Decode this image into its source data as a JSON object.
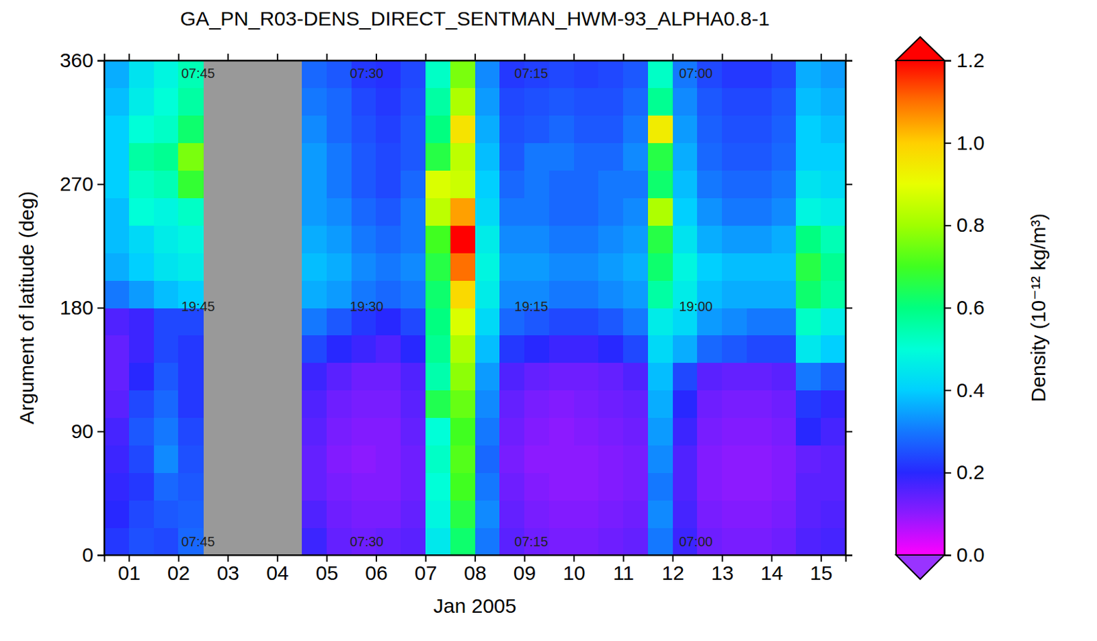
{
  "chart_data": {
    "type": "heatmap",
    "title": "GA_PN_R03-DENS_DIRECT_SENTMAN_HWM-93_ALPHA0.8-1",
    "x_label": "Jan 2005",
    "y_label": "Argument of latitude (deg)",
    "xlim": [
      1,
      16
    ],
    "xticks": [
      {
        "value": 1.5,
        "label": "01"
      },
      {
        "value": 2.5,
        "label": "02"
      },
      {
        "value": 3.5,
        "label": "03"
      },
      {
        "value": 4.5,
        "label": "04"
      },
      {
        "value": 5.5,
        "label": "05"
      },
      {
        "value": 6.5,
        "label": "06"
      },
      {
        "value": 7.5,
        "label": "07"
      },
      {
        "value": 8.5,
        "label": "08"
      },
      {
        "value": 9.5,
        "label": "09"
      },
      {
        "value": 10.5,
        "label": "10"
      },
      {
        "value": 11.5,
        "label": "11"
      },
      {
        "value": 12.5,
        "label": "12"
      },
      {
        "value": 13.5,
        "label": "13"
      },
      {
        "value": 14.5,
        "label": "14"
      },
      {
        "value": 15.5,
        "label": "15"
      }
    ],
    "ylim": [
      0,
      360
    ],
    "yticks": [
      0,
      90,
      180,
      270,
      360
    ],
    "x": [
      1,
      1.5,
      2,
      2.5,
      3,
      3.5,
      4,
      4.5,
      5,
      5.5,
      6,
      6.5,
      7,
      7.5,
      8,
      8.5,
      9,
      9.5,
      10,
      10.5,
      11,
      11.5,
      12,
      12.5,
      13,
      13.5,
      14,
      14.5,
      15,
      15.5
    ],
    "y": [
      0,
      20,
      40,
      60,
      80,
      100,
      120,
      140,
      160,
      180,
      200,
      220,
      240,
      260,
      280,
      300,
      320,
      340
    ],
    "values": [
      [
        0.22,
        0.25,
        0.24,
        0.28,
        null,
        null,
        null,
        null,
        0.18,
        0.14,
        0.13,
        0.14,
        0.15,
        0.45,
        0.62,
        0.3,
        0.15,
        0.13,
        0.12,
        0.12,
        0.13,
        0.14,
        0.3,
        0.18,
        0.13,
        0.12,
        0.12,
        0.13,
        0.16,
        0.17
      ],
      [
        0.2,
        0.24,
        0.26,
        0.27,
        null,
        null,
        null,
        null,
        0.16,
        0.13,
        0.12,
        0.12,
        0.14,
        0.48,
        0.66,
        0.32,
        0.14,
        0.12,
        0.11,
        0.11,
        0.12,
        0.13,
        0.32,
        0.17,
        0.12,
        0.11,
        0.11,
        0.12,
        0.15,
        0.16
      ],
      [
        0.19,
        0.22,
        0.28,
        0.26,
        null,
        null,
        null,
        null,
        0.14,
        0.12,
        0.11,
        0.11,
        0.13,
        0.5,
        0.7,
        0.3,
        0.13,
        0.11,
        0.1,
        0.1,
        0.11,
        0.12,
        0.3,
        0.16,
        0.11,
        0.1,
        0.1,
        0.11,
        0.15,
        0.15
      ],
      [
        0.18,
        0.24,
        0.32,
        0.25,
        null,
        null,
        null,
        null,
        0.14,
        0.11,
        0.1,
        0.11,
        0.13,
        0.52,
        0.72,
        0.28,
        0.12,
        0.1,
        0.1,
        0.1,
        0.11,
        0.12,
        0.32,
        0.16,
        0.11,
        0.1,
        0.1,
        0.11,
        0.14,
        0.15
      ],
      [
        0.17,
        0.26,
        0.3,
        0.24,
        null,
        null,
        null,
        null,
        0.15,
        0.12,
        0.11,
        0.11,
        0.14,
        0.5,
        0.7,
        0.3,
        0.13,
        0.11,
        0.1,
        0.11,
        0.12,
        0.13,
        0.34,
        0.18,
        0.12,
        0.11,
        0.11,
        0.12,
        0.2,
        0.17
      ],
      [
        0.15,
        0.24,
        0.28,
        0.22,
        null,
        null,
        null,
        null,
        0.16,
        0.13,
        0.12,
        0.12,
        0.15,
        0.65,
        0.74,
        0.32,
        0.14,
        0.12,
        0.11,
        0.12,
        0.13,
        0.14,
        0.36,
        0.2,
        0.13,
        0.12,
        0.12,
        0.13,
        0.22,
        0.19
      ],
      [
        0.14,
        0.2,
        0.26,
        0.22,
        null,
        null,
        null,
        null,
        0.18,
        0.15,
        0.13,
        0.13,
        0.16,
        0.55,
        0.78,
        0.34,
        0.16,
        0.14,
        0.13,
        0.13,
        0.14,
        0.16,
        0.38,
        0.24,
        0.15,
        0.14,
        0.14,
        0.15,
        0.3,
        0.26
      ],
      [
        0.14,
        0.18,
        0.24,
        0.22,
        null,
        null,
        null,
        null,
        0.24,
        0.2,
        0.18,
        0.16,
        0.2,
        0.58,
        0.82,
        0.38,
        0.22,
        0.2,
        0.18,
        0.18,
        0.2,
        0.24,
        0.42,
        0.36,
        0.28,
        0.26,
        0.24,
        0.24,
        0.45,
        0.4
      ],
      [
        0.16,
        0.18,
        0.24,
        0.24,
        null,
        null,
        null,
        null,
        0.3,
        0.26,
        0.22,
        0.2,
        0.24,
        0.6,
        0.88,
        0.42,
        0.28,
        0.26,
        0.24,
        0.24,
        0.26,
        0.3,
        0.46,
        0.42,
        0.34,
        0.32,
        0.3,
        0.3,
        0.52,
        0.46
      ],
      [
        0.3,
        0.34,
        0.38,
        0.4,
        null,
        null,
        null,
        null,
        0.36,
        0.34,
        0.3,
        0.28,
        0.3,
        0.62,
        0.98,
        0.46,
        0.32,
        0.32,
        0.3,
        0.3,
        0.32,
        0.34,
        0.56,
        0.46,
        0.38,
        0.36,
        0.36,
        0.36,
        0.62,
        0.56
      ],
      [
        0.36,
        0.4,
        0.44,
        0.46,
        null,
        null,
        null,
        null,
        0.38,
        0.36,
        0.32,
        0.3,
        0.32,
        0.66,
        1.1,
        0.48,
        0.34,
        0.34,
        0.32,
        0.32,
        0.34,
        0.36,
        0.62,
        0.48,
        0.4,
        0.38,
        0.38,
        0.38,
        0.66,
        0.58
      ],
      [
        0.38,
        0.42,
        0.46,
        0.48,
        null,
        null,
        null,
        null,
        0.36,
        0.34,
        0.3,
        0.28,
        0.3,
        0.7,
        1.2,
        0.46,
        0.32,
        0.32,
        0.3,
        0.3,
        0.32,
        0.34,
        0.66,
        0.44,
        0.36,
        0.34,
        0.34,
        0.36,
        0.6,
        0.54
      ],
      [
        0.38,
        0.5,
        0.48,
        0.52,
        null,
        null,
        null,
        null,
        0.34,
        0.32,
        0.28,
        0.26,
        0.3,
        0.84,
        1.05,
        0.42,
        0.3,
        0.3,
        0.28,
        0.28,
        0.3,
        0.32,
        0.82,
        0.4,
        0.33,
        0.3,
        0.3,
        0.32,
        0.48,
        0.46
      ],
      [
        0.4,
        0.52,
        0.54,
        0.68,
        null,
        null,
        null,
        null,
        0.34,
        0.3,
        0.26,
        0.24,
        0.28,
        0.88,
        0.86,
        0.4,
        0.28,
        0.3,
        0.28,
        0.28,
        0.3,
        0.3,
        0.62,
        0.38,
        0.3,
        0.28,
        0.28,
        0.3,
        0.44,
        0.42
      ],
      [
        0.4,
        0.56,
        0.58,
        0.76,
        null,
        null,
        null,
        null,
        0.34,
        0.3,
        0.26,
        0.24,
        0.26,
        0.66,
        0.84,
        0.38,
        0.26,
        0.3,
        0.3,
        0.28,
        0.28,
        0.32,
        0.66,
        0.36,
        0.28,
        0.26,
        0.26,
        0.28,
        0.4,
        0.4
      ],
      [
        0.4,
        0.5,
        0.52,
        0.62,
        null,
        null,
        null,
        null,
        0.32,
        0.28,
        0.25,
        0.23,
        0.26,
        0.6,
        0.96,
        0.36,
        0.25,
        0.26,
        0.28,
        0.26,
        0.26,
        0.3,
        0.94,
        0.34,
        0.27,
        0.25,
        0.25,
        0.27,
        0.4,
        0.38
      ],
      [
        0.38,
        0.46,
        0.5,
        0.56,
        null,
        null,
        null,
        null,
        0.3,
        0.28,
        0.24,
        0.22,
        0.25,
        0.56,
        0.82,
        0.34,
        0.24,
        0.25,
        0.26,
        0.25,
        0.25,
        0.28,
        0.58,
        0.32,
        0.26,
        0.24,
        0.24,
        0.26,
        0.38,
        0.36
      ],
      [
        0.36,
        0.44,
        0.48,
        0.54,
        null,
        null,
        null,
        null,
        0.28,
        0.26,
        0.22,
        0.21,
        0.24,
        0.52,
        0.76,
        0.32,
        0.22,
        0.23,
        0.24,
        0.23,
        0.24,
        0.26,
        0.52,
        0.3,
        0.24,
        0.22,
        0.22,
        0.24,
        0.36,
        0.34
      ]
    ],
    "colorbar": {
      "title": "Density (10⁻¹² kg/m³)",
      "range": [
        0,
        1.2
      ],
      "ticks": [
        {
          "value": 0,
          "label": "0.0"
        },
        {
          "value": 0.2,
          "label": "0.2"
        },
        {
          "value": 0.4,
          "label": "0.4"
        },
        {
          "value": 0.6,
          "label": "0.6"
        },
        {
          "value": 0.8,
          "label": "0.8"
        },
        {
          "value": 1,
          "label": "1.0"
        },
        {
          "value": 1.2,
          "label": "1.2"
        }
      ]
    },
    "annotations": [
      {
        "text": "07:45",
        "x": 2.9,
        "y": 350
      },
      {
        "text": "19:45",
        "x": 2.9,
        "y": 180
      },
      {
        "text": "07:45",
        "x": 2.9,
        "y": 9
      },
      {
        "text": "07:30",
        "x": 6.31,
        "y": 350
      },
      {
        "text": "19:30",
        "x": 6.31,
        "y": 180
      },
      {
        "text": "07:30",
        "x": 6.31,
        "y": 9
      },
      {
        "text": "07:15",
        "x": 9.64,
        "y": 350
      },
      {
        "text": "19:15",
        "x": 9.64,
        "y": 180
      },
      {
        "text": "07:15",
        "x": 9.64,
        "y": 9
      },
      {
        "text": "07:00",
        "x": 12.97,
        "y": 350
      },
      {
        "text": "19:00",
        "x": 12.97,
        "y": 180
      },
      {
        "text": "07:00",
        "x": 12.97,
        "y": 9
      }
    ]
  }
}
